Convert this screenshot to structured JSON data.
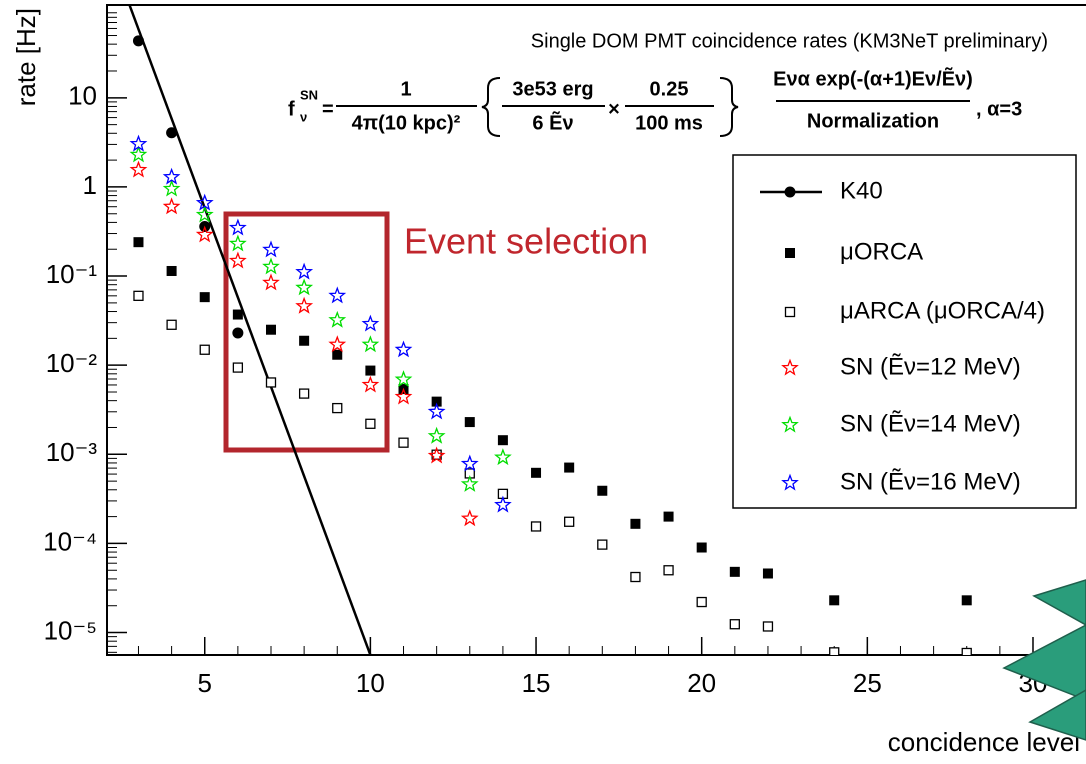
{
  "chart_data": {
    "type": "scatter",
    "title": "Single DOM PMT coincidence rates (KM3NeT preliminary)",
    "formula": {
      "f": "f",
      "sup": "SN",
      "sub": "ν",
      "eq": "=",
      "n1": "1",
      "d1": "4π(10 kpc)²",
      "n2": "3e53 erg",
      "d2": "6  Ẽν",
      "times": "×",
      "n3": "0.25",
      "d3": "100 ms",
      "n4": "Eνα exp(-(α+1)Eν/Ẽν)",
      "d4": "Normalization",
      "alpha": ", α=3"
    },
    "annotation": "Event selection",
    "x_label": "concidence level",
    "y_label": "rate [Hz]",
    "log_y": true,
    "xlim": [
      2.05,
      31.6
    ],
    "xticks": [
      5,
      10,
      15,
      20,
      25,
      30
    ],
    "ylim": [
      5.6e-06,
      110
    ],
    "yticks": [
      {
        "value": 1e-05,
        "label": "10⁻⁵"
      },
      {
        "value": 0.0001,
        "label": "10⁻⁴"
      },
      {
        "value": 0.001,
        "label": "10⁻³"
      },
      {
        "value": 0.01,
        "label": "10⁻²"
      },
      {
        "value": 0.1,
        "label": "10⁻¹"
      },
      1,
      10
    ],
    "legend": "upper right",
    "series": [
      {
        "name": "K40",
        "color": "#000000",
        "marker": "circle",
        "x": [
          3,
          4,
          5,
          6
        ],
        "values": [
          43.6,
          4.05,
          0.36,
          0.023
        ],
        "fit_x": [
          2.73,
          10.0
        ],
        "fit_values": [
          110,
          5.6e-06
        ]
      },
      {
        "name": "μORCA",
        "color": "#000000",
        "marker": "square",
        "x": [
          3,
          4,
          5,
          6,
          7,
          8,
          9,
          10,
          11,
          12,
          13,
          14,
          15,
          16,
          17,
          18,
          19,
          20,
          21,
          22,
          24,
          28
        ],
        "values": [
          0.24,
          0.114,
          0.058,
          0.037,
          0.025,
          0.0188,
          0.0131,
          0.0087,
          0.0054,
          0.0039,
          0.0023,
          0.00144,
          0.00062,
          0.00071,
          0.00039,
          0.000166,
          0.0002,
          9e-05,
          4.8e-05,
          4.6e-05,
          2.3e-05,
          2.3e-05
        ]
      },
      {
        "name": "μARCA (μORCA/4)",
        "color": "#000000",
        "marker": "open-square",
        "x": [
          3,
          4,
          5,
          6,
          7,
          8,
          9,
          10,
          11,
          12,
          13,
          14,
          15,
          16,
          17,
          18,
          19,
          20,
          21,
          22,
          24,
          28
        ],
        "values": [
          0.06,
          0.0284,
          0.0149,
          0.0094,
          0.0064,
          0.0048,
          0.0033,
          0.0022,
          0.00135,
          0.00099,
          0.00061,
          0.00036,
          0.000155,
          0.000175,
          9.7e-05,
          4.2e-05,
          5e-05,
          2.2e-05,
          1.24e-05,
          1.17e-05,
          6e-06,
          5.9e-06
        ]
      },
      {
        "name": "SN (Ẽν=12 MeV)",
        "color": "#ff0000",
        "marker": "star",
        "x": [
          3,
          4,
          5,
          6,
          7,
          8,
          9,
          10,
          11,
          12,
          13
        ],
        "values": [
          1.55,
          0.6,
          0.29,
          0.148,
          0.084,
          0.046,
          0.017,
          0.006,
          0.0044,
          0.00096,
          0.00019
        ]
      },
      {
        "name": "SN (Ẽν=14 MeV)",
        "color": "#00dd00",
        "marker": "star",
        "x": [
          3,
          4,
          5,
          6,
          7,
          8,
          9,
          10,
          11,
          12,
          13,
          14
        ],
        "values": [
          2.29,
          0.95,
          0.485,
          0.23,
          0.127,
          0.074,
          0.032,
          0.017,
          0.0069,
          0.0016,
          0.00046,
          0.00092
        ]
      },
      {
        "name": "SN (Ẽν=16 MeV)",
        "color": "#0000ff",
        "marker": "star",
        "x": [
          3,
          4,
          5,
          6,
          7,
          8,
          9,
          10,
          11,
          12,
          13,
          14
        ],
        "values": [
          3.03,
          1.29,
          0.66,
          0.347,
          0.197,
          0.111,
          0.06,
          0.029,
          0.0149,
          0.003,
          0.00078,
          0.00027
        ]
      }
    ]
  }
}
